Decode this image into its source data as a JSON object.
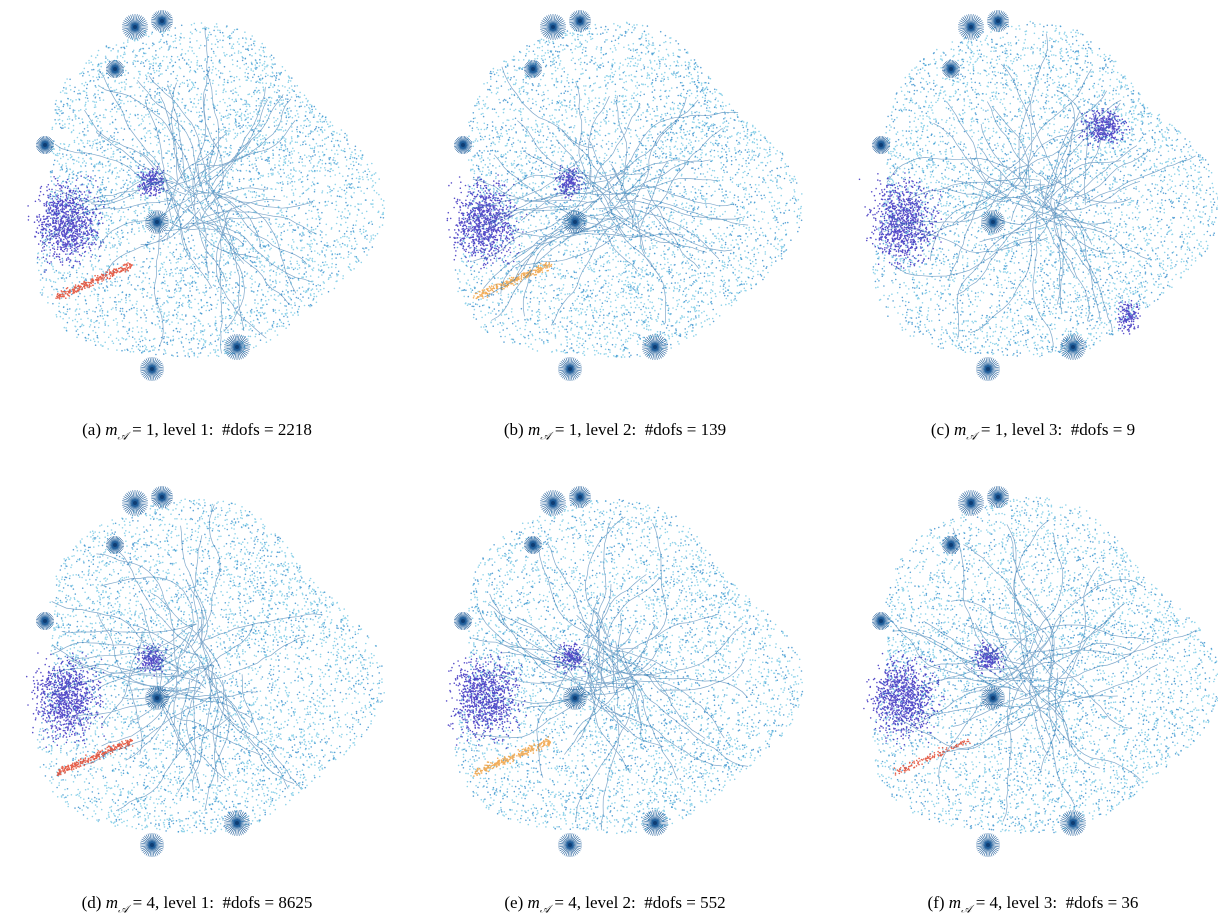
{
  "panels": [
    {
      "tag": "(a)",
      "symbol": "m",
      "subscript": "𝒜",
      "text": "= 1, level 1:  #dofs = 2218"
    },
    {
      "tag": "(b)",
      "symbol": "m",
      "subscript": "𝒜",
      "text": "= 1, level 2:  #dofs = 139"
    },
    {
      "tag": "(c)",
      "symbol": "m",
      "subscript": "𝒜",
      "text": "= 1, level 3:  #dofs = 9"
    },
    {
      "tag": "(d)",
      "symbol": "m",
      "subscript": "𝒜",
      "text": "= 4, level 1:  #dofs = 8625"
    },
    {
      "tag": "(e)",
      "symbol": "m",
      "subscript": "𝒜",
      "text": "= 4, level 2:  #dofs = 552"
    },
    {
      "tag": "(f)",
      "symbol": "m",
      "subscript": "𝒜",
      "text": "= 4, level 3:  #dofs = 36"
    }
  ]
}
